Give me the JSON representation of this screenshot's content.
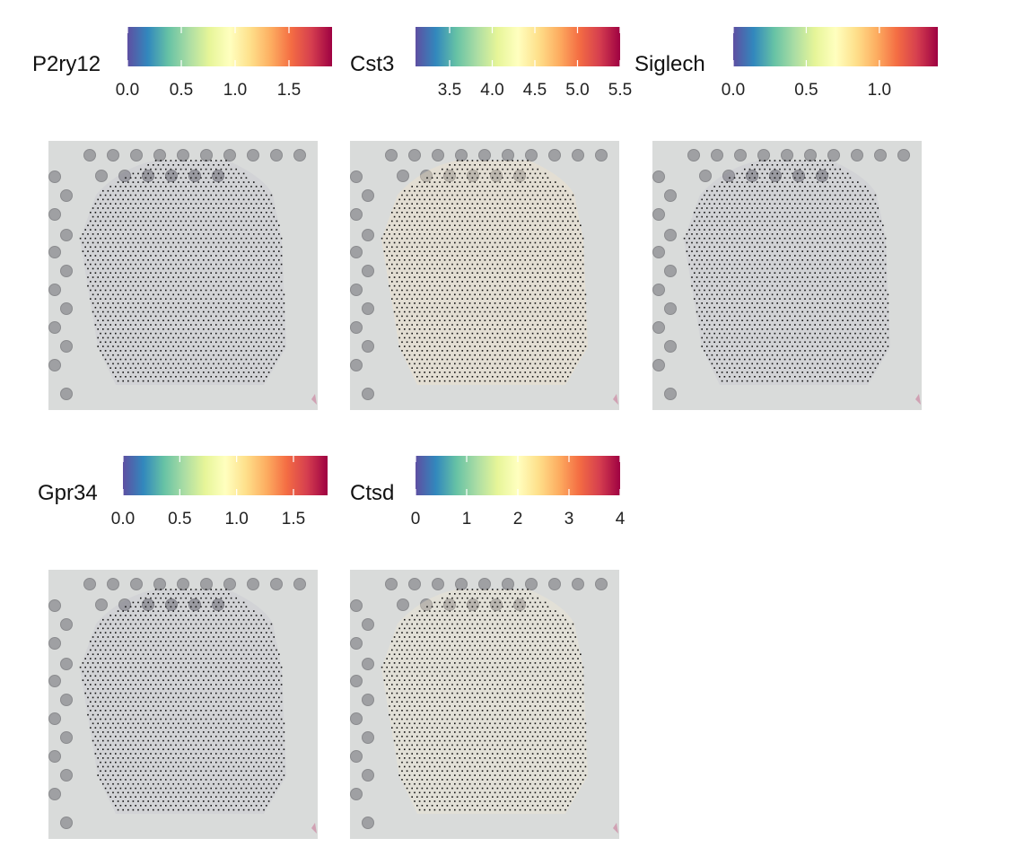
{
  "colormap": {
    "name": "Spectral (reversed)",
    "stops": [
      "#5e4fa2",
      "#3288bd",
      "#66c2a5",
      "#abdda4",
      "#e6f598",
      "#ffffbf",
      "#fee08b",
      "#fdae61",
      "#f46d43",
      "#d53e4f",
      "#9e0142"
    ]
  },
  "background": {
    "slide_color": "#d9dbda",
    "fiducial_color": "#9fa0a3",
    "spot_color": "#111111"
  },
  "chart_data": [
    {
      "type": "heatmap",
      "gene": "P2ry12",
      "color_range": [
        0,
        1.9
      ],
      "ticks": [
        "0.0",
        "0.5",
        "1.0",
        "1.5"
      ],
      "tick_values": [
        0.0,
        0.5,
        1.0,
        1.5
      ],
      "tint": "#5e4fa2",
      "tint_strength": 0.05
    },
    {
      "type": "heatmap",
      "gene": "Cst3",
      "color_range": [
        3.1,
        5.5
      ],
      "ticks": [
        "3.5",
        "4.0",
        "4.5",
        "5.0",
        "5.5"
      ],
      "tick_values": [
        3.5,
        4.0,
        4.5,
        5.0,
        5.5
      ],
      "tint": "#f7e6c6",
      "tint_strength": 0.35
    },
    {
      "type": "heatmap",
      "gene": "Siglech",
      "color_range": [
        0,
        1.4
      ],
      "ticks": [
        "0.0",
        "0.5",
        "1.0"
      ],
      "tick_values": [
        0.0,
        0.5,
        1.0
      ],
      "tint": "#5e4fa2",
      "tint_strength": 0.05
    },
    {
      "type": "heatmap",
      "gene": "Gpr34",
      "color_range": [
        0,
        1.8
      ],
      "ticks": [
        "0.0",
        "0.5",
        "1.0",
        "1.5"
      ],
      "tick_values": [
        0.0,
        0.5,
        1.0,
        1.5
      ],
      "tint": "#5e4fa2",
      "tint_strength": 0.05
    },
    {
      "type": "heatmap",
      "gene": "Ctsd",
      "color_range": [
        0,
        4
      ],
      "ticks": [
        "0",
        "1",
        "2",
        "3",
        "4"
      ],
      "tick_values": [
        0,
        1,
        2,
        3,
        4
      ],
      "tint": "#f7ead0",
      "tint_strength": 0.3
    }
  ]
}
